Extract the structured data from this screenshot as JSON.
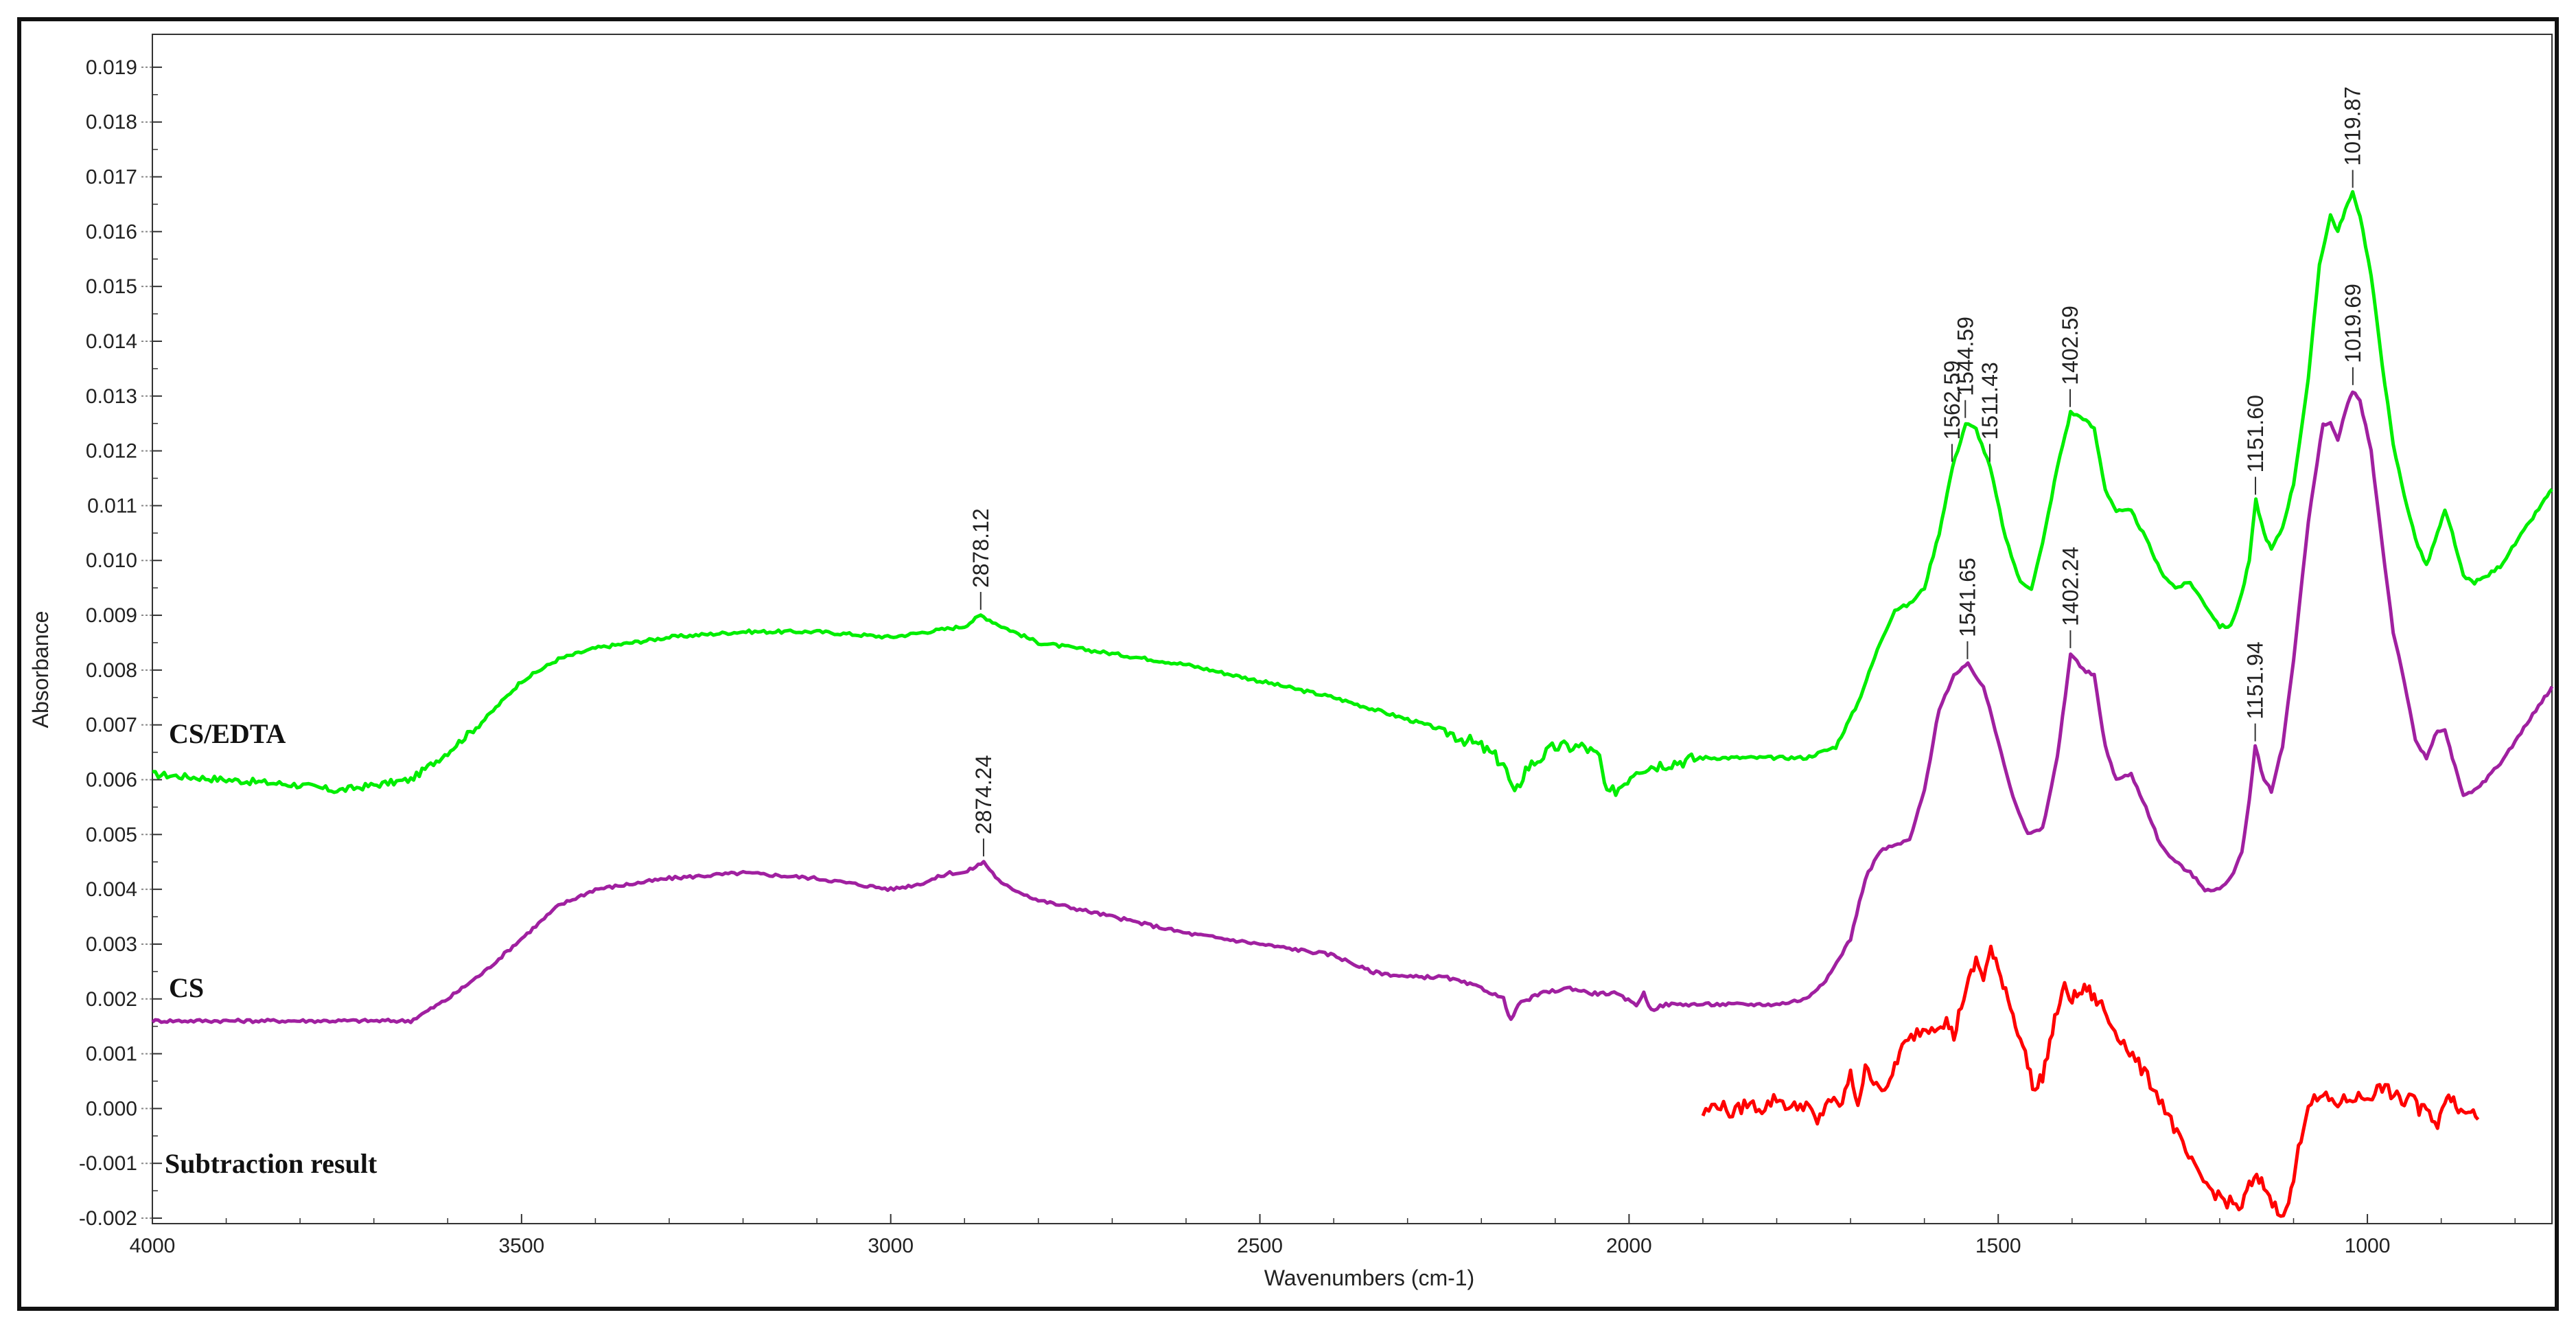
{
  "chart_data": {
    "type": "line",
    "xlabel": "Wavenumbers (cm-1)",
    "ylabel": "Absorbance",
    "xlim": [
      4000,
      750
    ],
    "ylim": [
      -0.0021,
      0.0196
    ],
    "x_reversed": true,
    "grid": false,
    "x_ticks": [
      4000,
      3500,
      3000,
      2500,
      2000,
      1500,
      1000
    ],
    "x_tick_labels": [
      "4000",
      "3500",
      "3000",
      "2500",
      "2000",
      "1500",
      "1000"
    ],
    "y_ticks": [
      -0.002,
      -0.001,
      0.0,
      0.001,
      0.002,
      0.003,
      0.004,
      0.005,
      0.006,
      0.007,
      0.008,
      0.009,
      0.01,
      0.011,
      0.012,
      0.013,
      0.014,
      0.015,
      0.016,
      0.017,
      0.018,
      0.019
    ],
    "y_tick_labels": [
      "-0.002",
      "-0.001",
      "0.000",
      "0.001",
      "0.002",
      "0.003",
      "0.004",
      "0.005",
      "0.006",
      "0.007",
      "0.008",
      "0.009",
      "0.010",
      "0.011",
      "0.012",
      "0.013",
      "0.014",
      "0.015",
      "0.016",
      "0.017",
      "0.018",
      "0.019"
    ],
    "series": [
      {
        "name": "CS/EDTA",
        "color": "#00ee00",
        "x": [
          4000,
          3900,
          3800,
          3750,
          3700,
          3650,
          3600,
          3550,
          3500,
          3450,
          3400,
          3350,
          3300,
          3200,
          3100,
          3000,
          2950,
          2900,
          2878,
          2850,
          2800,
          2700,
          2600,
          2500,
          2400,
          2300,
          2250,
          2200,
          2170,
          2155,
          2140,
          2100,
          2060,
          2040,
          2030,
          2010,
          1990,
          1950,
          1900,
          1850,
          1800,
          1760,
          1720,
          1690,
          1660,
          1640,
          1620,
          1600,
          1580,
          1562,
          1544,
          1530,
          1511,
          1490,
          1470,
          1455,
          1440,
          1420,
          1402,
          1385,
          1370,
          1355,
          1340,
          1320,
          1300,
          1280,
          1260,
          1240,
          1220,
          1200,
          1185,
          1170,
          1160,
          1151,
          1140,
          1130,
          1115,
          1100,
          1080,
          1065,
          1050,
          1040,
          1030,
          1020,
          1010,
          995,
          980,
          965,
          950,
          935,
          920,
          905,
          895,
          885,
          870,
          855,
          840,
          820,
          800,
          780,
          760,
          750
        ],
        "y": [
          0.0061,
          0.006,
          0.0059,
          0.0058,
          0.0059,
          0.006,
          0.0065,
          0.0071,
          0.0078,
          0.0082,
          0.0084,
          0.0085,
          0.0086,
          0.0087,
          0.0087,
          0.0086,
          0.0087,
          0.0088,
          0.009,
          0.0088,
          0.0085,
          0.0083,
          0.0081,
          0.0078,
          0.0075,
          0.0071,
          0.0069,
          0.0066,
          0.0063,
          0.0057,
          0.0062,
          0.0066,
          0.0066,
          0.0064,
          0.0057,
          0.0059,
          0.0062,
          0.0063,
          0.0064,
          0.0064,
          0.0064,
          0.0064,
          0.0066,
          0.0074,
          0.0085,
          0.0091,
          0.0092,
          0.0095,
          0.0105,
          0.0117,
          0.0125,
          0.0124,
          0.0117,
          0.0104,
          0.0096,
          0.0095,
          0.0103,
          0.0117,
          0.0127,
          0.0126,
          0.0124,
          0.0113,
          0.0109,
          0.0109,
          0.0104,
          0.0098,
          0.0095,
          0.0096,
          0.0092,
          0.0088,
          0.0088,
          0.0094,
          0.01,
          0.0111,
          0.0105,
          0.0102,
          0.0106,
          0.0114,
          0.0133,
          0.0154,
          0.0163,
          0.016,
          0.0164,
          0.0167,
          0.0163,
          0.0152,
          0.0136,
          0.0121,
          0.0112,
          0.0104,
          0.0099,
          0.0105,
          0.0109,
          0.0105,
          0.0097,
          0.0096,
          0.0097,
          0.0099,
          0.0103,
          0.0107,
          0.0111,
          0.0113
        ]
      },
      {
        "name": "CS",
        "color": "#a020a0",
        "x": [
          4000,
          3900,
          3800,
          3700,
          3650,
          3600,
          3550,
          3500,
          3450,
          3400,
          3350,
          3300,
          3200,
          3100,
          3000,
          2960,
          2920,
          2900,
          2874,
          2850,
          2800,
          2700,
          2600,
          2500,
          2400,
          2350,
          2300,
          2250,
          2200,
          2170,
          2160,
          2150,
          2120,
          2080,
          2050,
          2020,
          1990,
          1980,
          1970,
          1950,
          1900,
          1850,
          1800,
          1760,
          1730,
          1700,
          1680,
          1660,
          1640,
          1620,
          1600,
          1580,
          1560,
          1541,
          1520,
          1500,
          1480,
          1460,
          1440,
          1420,
          1402,
          1385,
          1370,
          1355,
          1340,
          1320,
          1300,
          1280,
          1260,
          1240,
          1220,
          1200,
          1185,
          1170,
          1160,
          1152,
          1140,
          1130,
          1115,
          1100,
          1080,
          1060,
          1050,
          1040,
          1030,
          1020,
          1010,
          995,
          980,
          965,
          950,
          935,
          920,
          905,
          895,
          885,
          870,
          855,
          840,
          820,
          800,
          780,
          760,
          750
        ],
        "y": [
          0.0016,
          0.0016,
          0.0016,
          0.0016,
          0.0016,
          0.002,
          0.0025,
          0.0031,
          0.0037,
          0.004,
          0.0041,
          0.0042,
          0.0043,
          0.0042,
          0.004,
          0.0041,
          0.0043,
          0.0043,
          0.0045,
          0.0041,
          0.0038,
          0.0035,
          0.0032,
          0.003,
          0.0028,
          0.0025,
          0.0024,
          0.0024,
          0.0022,
          0.002,
          0.0016,
          0.0019,
          0.0021,
          0.0022,
          0.0021,
          0.0021,
          0.0019,
          0.0021,
          0.0018,
          0.0019,
          0.0019,
          0.0019,
          0.0019,
          0.002,
          0.0024,
          0.0031,
          0.0042,
          0.0047,
          0.0048,
          0.0049,
          0.0058,
          0.0073,
          0.0079,
          0.0081,
          0.0077,
          0.0067,
          0.0057,
          0.005,
          0.0051,
          0.0064,
          0.0083,
          0.008,
          0.0079,
          0.0066,
          0.006,
          0.0061,
          0.0055,
          0.0048,
          0.0045,
          0.0043,
          0.004,
          0.004,
          0.0042,
          0.0047,
          0.0056,
          0.0066,
          0.006,
          0.0058,
          0.0066,
          0.0082,
          0.0107,
          0.0125,
          0.0125,
          0.0122,
          0.0127,
          0.0131,
          0.0129,
          0.012,
          0.0103,
          0.0087,
          0.0078,
          0.0067,
          0.0064,
          0.0069,
          0.0069,
          0.0064,
          0.0057,
          0.0058,
          0.006,
          0.0063,
          0.0067,
          0.0071,
          0.0075,
          0.0077
        ]
      },
      {
        "name": "Subtraction result",
        "color": "#ff0000",
        "x": [
          1900,
          1880,
          1860,
          1840,
          1820,
          1800,
          1780,
          1760,
          1745,
          1730,
          1715,
          1700,
          1690,
          1680,
          1665,
          1650,
          1640,
          1630,
          1610,
          1590,
          1570,
          1560,
          1550,
          1540,
          1530,
          1520,
          1510,
          1500,
          1490,
          1480,
          1470,
          1460,
          1450,
          1440,
          1430,
          1420,
          1410,
          1400,
          1390,
          1380,
          1370,
          1360,
          1350,
          1330,
          1310,
          1290,
          1270,
          1250,
          1230,
          1210,
          1190,
          1170,
          1160,
          1150,
          1140,
          1125,
          1110,
          1100,
          1090,
          1080,
          1060,
          1040,
          1020,
          1000,
          990,
          980,
          960,
          950,
          940,
          930,
          920,
          905,
          895,
          890,
          880,
          870,
          860,
          850
        ],
        "y": [
          -0.0001,
          0.0001,
          -0.0001,
          0.0001,
          0.0,
          0.0002,
          0.0,
          0.0001,
          -0.0003,
          0.0002,
          0.0,
          0.0006,
          0.0001,
          0.0007,
          0.0005,
          0.0003,
          0.0008,
          0.0011,
          0.0014,
          0.0015,
          0.0016,
          0.0013,
          0.0019,
          0.0023,
          0.0027,
          0.0024,
          0.0029,
          0.0025,
          0.0022,
          0.0017,
          0.0013,
          0.0008,
          0.0003,
          0.0006,
          0.0012,
          0.0018,
          0.0022,
          0.002,
          0.0021,
          0.0022,
          0.002,
          0.0019,
          0.0016,
          0.0012,
          0.0008,
          0.0004,
          -0.0001,
          -0.0007,
          -0.0012,
          -0.0015,
          -0.0017,
          -0.0018,
          -0.0014,
          -0.0013,
          -0.0014,
          -0.0018,
          -0.0019,
          -0.0013,
          -0.0005,
          0.0001,
          0.0002,
          0.0001,
          0.0002,
          0.0002,
          0.0003,
          0.0004,
          0.0002,
          0.0001,
          0.0003,
          -0.0001,
          0.0001,
          -0.0004,
          0.0002,
          0.0003,
          0.0001,
          -0.0001,
          0.0,
          -0.0002
        ]
      }
    ],
    "annotations": [
      {
        "text": "2878.12",
        "series": "CS/EDTA",
        "x": 2878.12,
        "y": 0.009
      },
      {
        "text": "1562.59",
        "series": "CS/EDTA",
        "x": 1562.59,
        "y": 0.0117
      },
      {
        "text": "1544.59",
        "series": "CS/EDTA",
        "x": 1544.59,
        "y": 0.0125
      },
      {
        "text": "1511.43",
        "series": "CS/EDTA",
        "x": 1511.43,
        "y": 0.0117
      },
      {
        "text": "1402.59",
        "series": "CS/EDTA",
        "x": 1402.59,
        "y": 0.0127
      },
      {
        "text": "1151.60",
        "series": "CS/EDTA",
        "x": 1151.6,
        "y": 0.0111
      },
      {
        "text": "1019.87",
        "series": "CS/EDTA",
        "x": 1019.87,
        "y": 0.0167
      },
      {
        "text": "2874.24",
        "series": "CS",
        "x": 2874.24,
        "y": 0.0045
      },
      {
        "text": "1541.65",
        "series": "CS",
        "x": 1541.65,
        "y": 0.0081
      },
      {
        "text": "1402.24",
        "series": "CS",
        "x": 1402.24,
        "y": 0.0083
      },
      {
        "text": "1151.94",
        "series": "CS",
        "x": 1151.94,
        "y": 0.0066
      },
      {
        "text": "1019.69",
        "series": "CS",
        "x": 1019.69,
        "y": 0.0131
      }
    ]
  }
}
